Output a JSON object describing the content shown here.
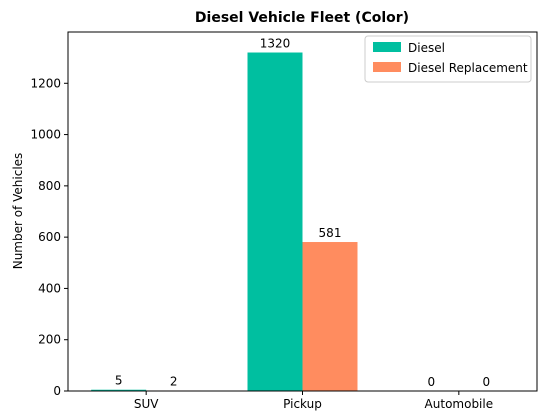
{
  "chart_data": {
    "type": "bar",
    "title": "Diesel Vehicle Fleet (Color)",
    "xlabel": "",
    "ylabel": "Number of Vehicles",
    "categories": [
      "SUV",
      "Pickup",
      "Automobile"
    ],
    "series": [
      {
        "name": "Diesel",
        "values": [
          5,
          1320,
          0
        ],
        "color": "#00BFA0"
      },
      {
        "name": "Diesel Replacement",
        "values": [
          2,
          581,
          0
        ],
        "color": "#FF8C5F"
      }
    ],
    "ylim": [
      0,
      1400
    ],
    "yticks": [
      0,
      200,
      400,
      600,
      800,
      1000,
      1200
    ],
    "grid": false,
    "legend_position": "top-right",
    "data_labels": true
  }
}
